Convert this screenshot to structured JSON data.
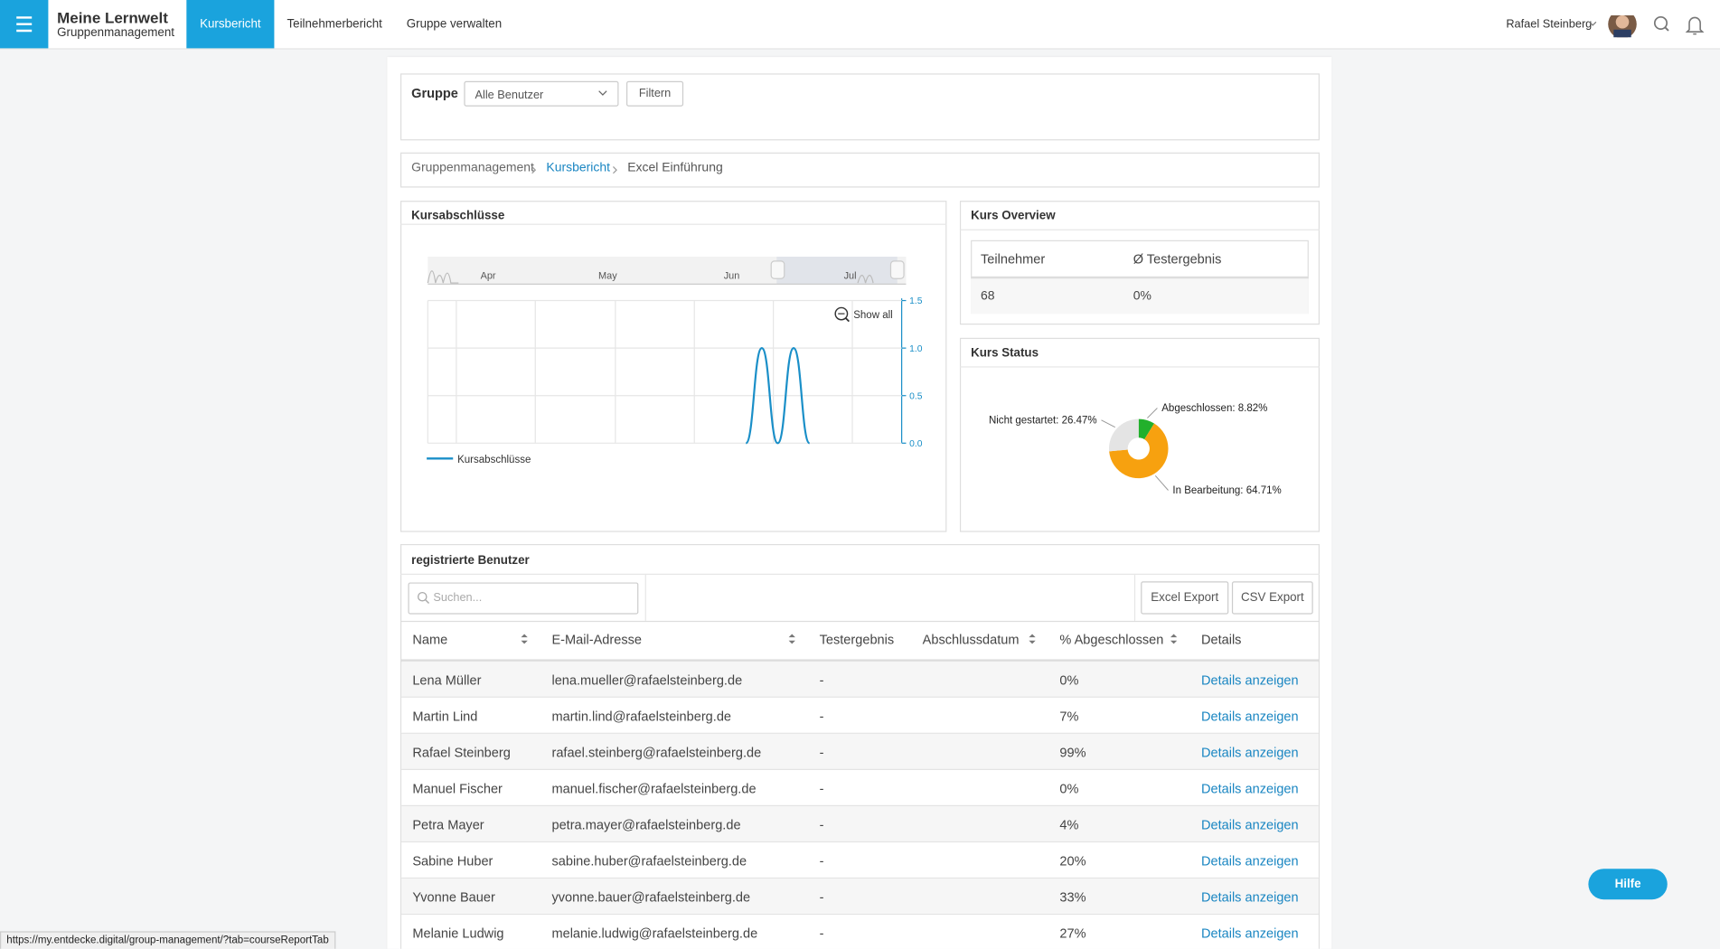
{
  "header": {
    "app_title": "Meine Lernwelt",
    "app_subtitle": "Gruppenmanagement",
    "tabs": [
      "Kursbericht",
      "Teilnehmerbericht",
      "Gruppe verwalten"
    ],
    "user": "Rafael Steinberg"
  },
  "filter": {
    "label": "Gruppe",
    "select": "Alle Benutzer",
    "button": "Filtern"
  },
  "breadcrumb": [
    "Gruppenmanagement",
    "Kursbericht",
    "Excel Einführung"
  ],
  "line_chart": {
    "type": "line",
    "title": "Kursabschlüsse",
    "navigator_labels": [
      "Apr",
      "May",
      "Jun",
      "Jul"
    ],
    "reset_label": "Show all",
    "series": [
      {
        "name": "Kursabschlüsse",
        "color": "#1a8fc8",
        "values": [
          null,
          null,
          null,
          null,
          null,
          null,
          null,
          null,
          null,
          null,
          null,
          null,
          null,
          null,
          null,
          null,
          null,
          null,
          null,
          null,
          0,
          1,
          0,
          1,
          0,
          null,
          null,
          null,
          null,
          null
        ]
      }
    ],
    "ylim": [
      0,
      1.5
    ],
    "yticks": [
      {
        "value": 0,
        "label": "0.0"
      },
      0.5,
      {
        "value": 1,
        "label": "1.0"
      },
      1.5
    ]
  },
  "overview": {
    "title": "Kurs Overview",
    "headers": [
      "Teilnehmer",
      "Ø Testergebnis"
    ],
    "values": [
      "68",
      "0%"
    ]
  },
  "status_chart": {
    "type": "pie",
    "title": "Kurs Status",
    "values": [
      8.82,
      64.71,
      26.47
    ],
    "value_labels": [
      "Abgeschlossen: 8.82%",
      "In Bearbeitung: 64.71%",
      "Nicht gestartet: 26.47%"
    ],
    "colors": [
      "#22b02c",
      "#f7a10f",
      "#e4e4e4"
    ]
  },
  "users": {
    "title": "registrierte Benutzer",
    "search_placeholder": "Suchen...",
    "buttons": [
      "Excel Export",
      "CSV Export"
    ],
    "columns": [
      "Name",
      "E-Mail-Adresse",
      "Testergebnis",
      "Abschlussdatum",
      "% Abgeschlossen",
      "Details"
    ],
    "link_label": "Details anzeigen",
    "rows": [
      {
        "name": "Lena Müller",
        "email": "lena.mueller@rafaelsteinberg.de",
        "test": "-",
        "percent": "0%"
      },
      {
        "name": "Martin Lind",
        "email": "martin.lind@rafaelsteinberg.de",
        "test": "-",
        "percent": "7%"
      },
      {
        "name": "Rafael Steinberg",
        "email": "rafael.steinberg@rafaelsteinberg.de",
        "test": "-",
        "percent": "99%"
      },
      {
        "name": "Manuel Fischer",
        "email": "manuel.fischer@rafaelsteinberg.de",
        "test": "-",
        "percent": "0%"
      },
      {
        "name": "Petra Mayer",
        "email": "petra.mayer@rafaelsteinberg.de",
        "test": "-",
        "percent": "4%"
      },
      {
        "name": "Sabine Huber",
        "email": "sabine.huber@rafaelsteinberg.de",
        "test": "-",
        "percent": "20%"
      },
      {
        "name": "Yvonne Bauer",
        "email": "yvonne.bauer@rafaelsteinberg.de",
        "test": "-",
        "percent": "33%"
      },
      {
        "name": "Melanie Ludwig",
        "email": "melanie.ludwig@rafaelsteinberg.de",
        "test": "-",
        "percent": "27%"
      }
    ]
  },
  "help": "Hilfe",
  "status_url": "https://my.entdecke.digital/group-management/?tab=courseReportTab"
}
